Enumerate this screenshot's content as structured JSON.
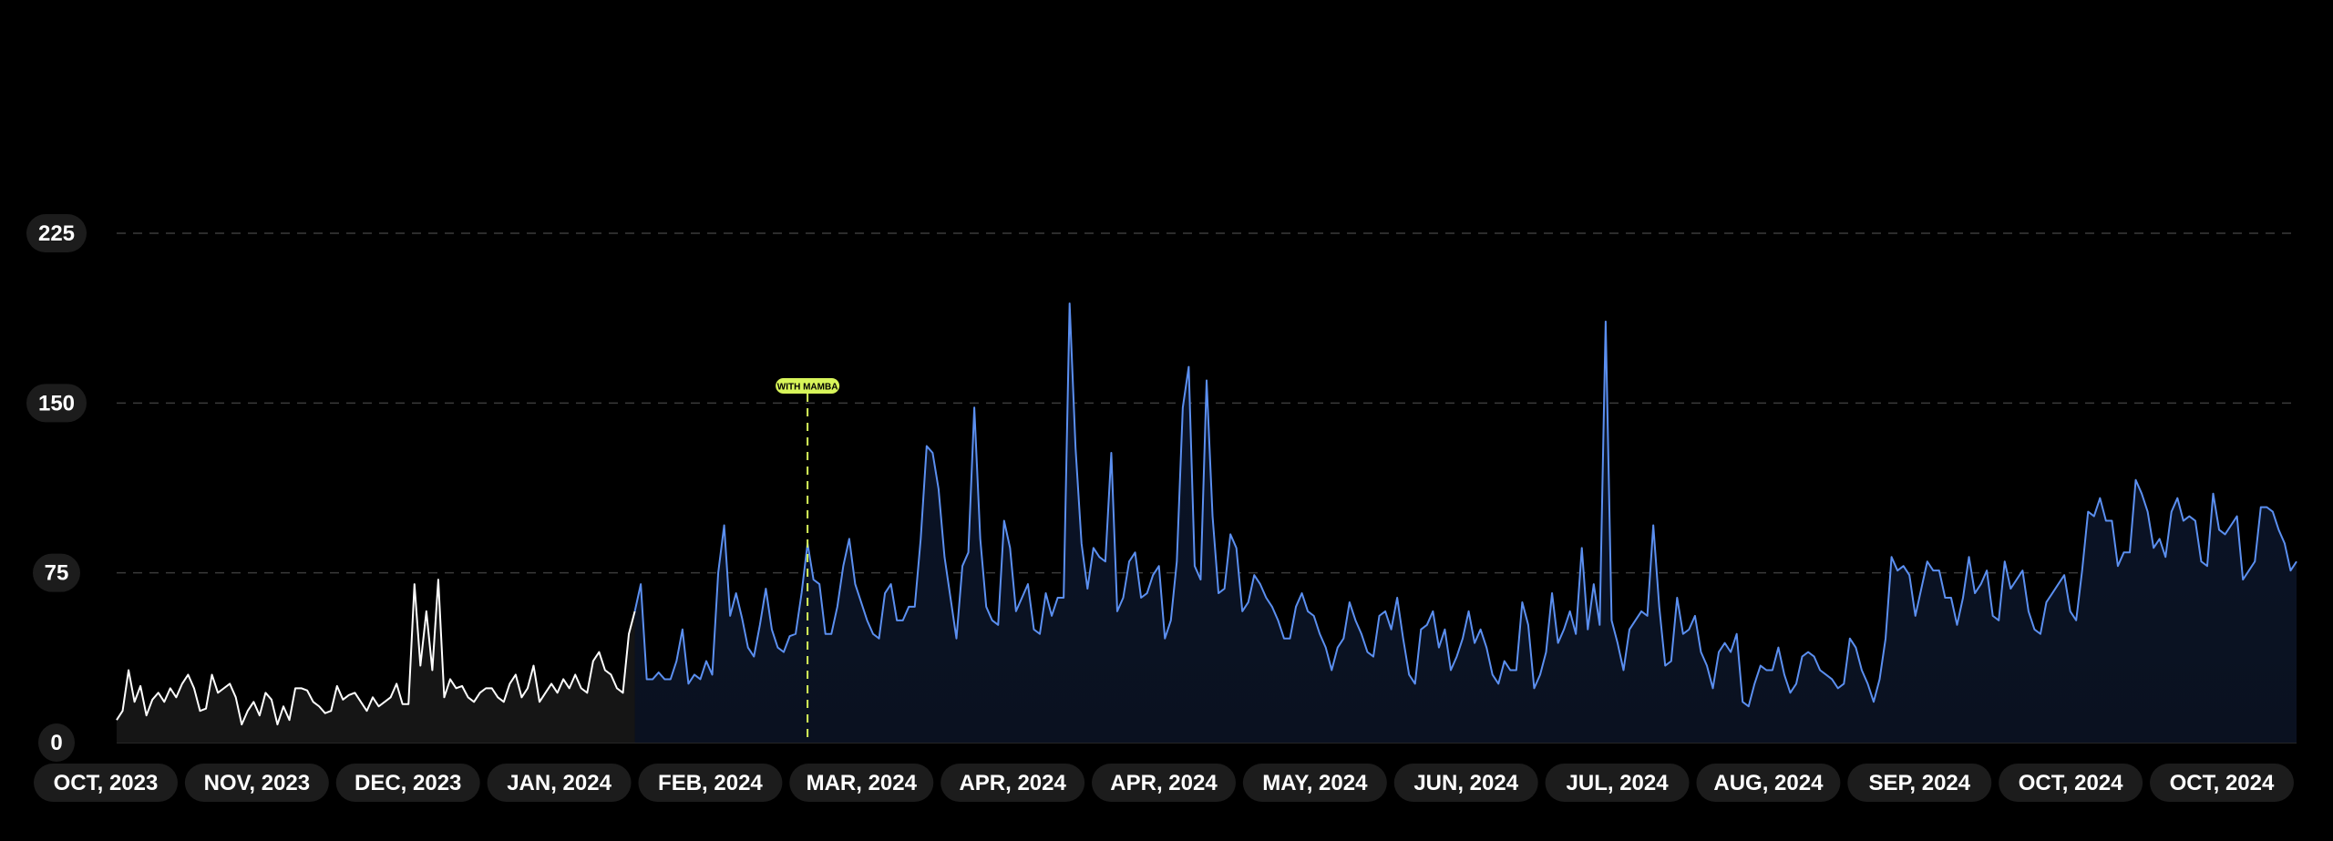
{
  "colors": {
    "background": "#000000",
    "before_line": "#ffffff",
    "after_line": "#5b8ff0",
    "marker": "#d8f55a",
    "grid": "#3a3a3a",
    "pill": "#1c1c1c"
  },
  "chart_data": {
    "type": "line",
    "title": "",
    "xlabel": "",
    "ylabel": "",
    "ylim": [
      0,
      225
    ],
    "yticks": [
      "0",
      "75",
      "150",
      "225"
    ],
    "grid": true,
    "x_tick_labels": [
      "OCT, 2023",
      "NOV, 2023",
      "DEC, 2023",
      "JAN, 2024",
      "FEB, 2024",
      "MAR, 2024",
      "APR, 2024",
      "APR, 2024",
      "MAY, 2024",
      "JUN, 2024",
      "JUL, 2024",
      "AUG, 2024",
      "SEP, 2024",
      "OCT, 2024",
      "OCT, 2024"
    ],
    "annotation": {
      "label": "WITH MAMBA",
      "at_index": 116
    },
    "series": [
      {
        "values": [
          10,
          14,
          32,
          18,
          25,
          12,
          19,
          22,
          18,
          24,
          20,
          26,
          30,
          24,
          14,
          15,
          30,
          22,
          24,
          26,
          20,
          8,
          14,
          18,
          12,
          22,
          19,
          8,
          16,
          10,
          24,
          24,
          23,
          18,
          16,
          13,
          14,
          25,
          19,
          21,
          22,
          18,
          14,
          20,
          16,
          18,
          20,
          26,
          17,
          17,
          70,
          34,
          58,
          32,
          72,
          20,
          28,
          24,
          25,
          20,
          18,
          22,
          24,
          24,
          20,
          18,
          26,
          30,
          20,
          24,
          34,
          18,
          22,
          26,
          22,
          28,
          24,
          30,
          24,
          22,
          36,
          40,
          32,
          30,
          24,
          22,
          48,
          58
        ]
      },
      {
        "values": [
          58,
          70,
          28,
          28,
          31,
          28,
          28,
          36,
          50,
          26,
          30,
          28,
          36,
          30,
          75,
          96,
          56,
          66,
          55,
          42,
          38,
          52,
          68,
          50,
          42,
          40,
          47,
          48,
          66,
          88,
          72,
          70,
          48,
          48,
          60,
          78,
          90,
          70,
          62,
          54,
          48,
          46,
          66,
          70,
          54,
          54,
          60,
          60,
          90,
          131,
          128,
          112,
          82,
          64,
          46,
          78,
          84,
          148,
          90,
          60,
          54,
          52,
          98,
          86,
          58,
          64,
          70,
          50,
          48,
          66,
          56,
          64,
          64,
          194,
          130,
          88,
          68,
          86,
          82,
          80,
          128,
          58,
          64,
          80,
          84,
          64,
          66,
          74,
          78,
          46,
          54,
          80,
          148,
          166,
          78,
          72,
          160,
          100,
          66,
          68,
          92,
          86,
          58,
          62,
          74,
          70,
          64,
          60,
          54,
          46,
          46,
          60,
          66,
          58,
          56,
          48,
          42,
          32,
          42,
          46,
          62,
          54,
          48,
          40,
          38,
          56,
          58,
          50,
          64,
          46,
          30,
          26,
          50,
          52,
          58,
          42,
          50,
          32,
          38,
          46,
          58,
          44,
          50,
          42,
          30,
          26,
          36,
          32,
          32,
          62,
          52,
          24,
          30,
          40,
          66,
          44,
          50,
          58,
          48,
          86,
          50,
          70,
          52,
          186,
          54,
          44,
          32,
          50,
          54,
          58,
          56,
          96,
          60,
          34,
          36,
          64,
          48,
          50,
          56,
          40,
          34,
          24,
          40,
          44,
          40,
          48,
          18,
          16,
          26,
          34,
          32,
          32,
          42,
          30,
          22,
          26,
          38,
          40,
          38,
          32,
          30,
          28,
          24,
          26,
          46,
          42,
          32,
          26,
          18,
          28,
          46,
          82,
          76,
          78,
          74,
          56,
          68,
          80,
          76,
          76,
          64,
          64,
          52,
          64,
          82,
          66,
          70,
          76,
          56,
          54,
          80,
          68,
          72,
          76,
          58,
          50,
          48,
          62,
          66,
          70,
          74,
          58,
          54,
          76,
          102,
          100,
          108,
          98,
          98,
          78,
          84,
          84,
          116,
          110,
          102,
          86,
          90,
          82,
          102,
          108,
          98,
          100,
          98,
          80,
          78,
          110,
          94,
          92,
          96,
          100,
          72,
          76,
          80,
          104,
          104,
          102,
          94,
          88,
          76,
          80
        ]
      }
    ]
  }
}
